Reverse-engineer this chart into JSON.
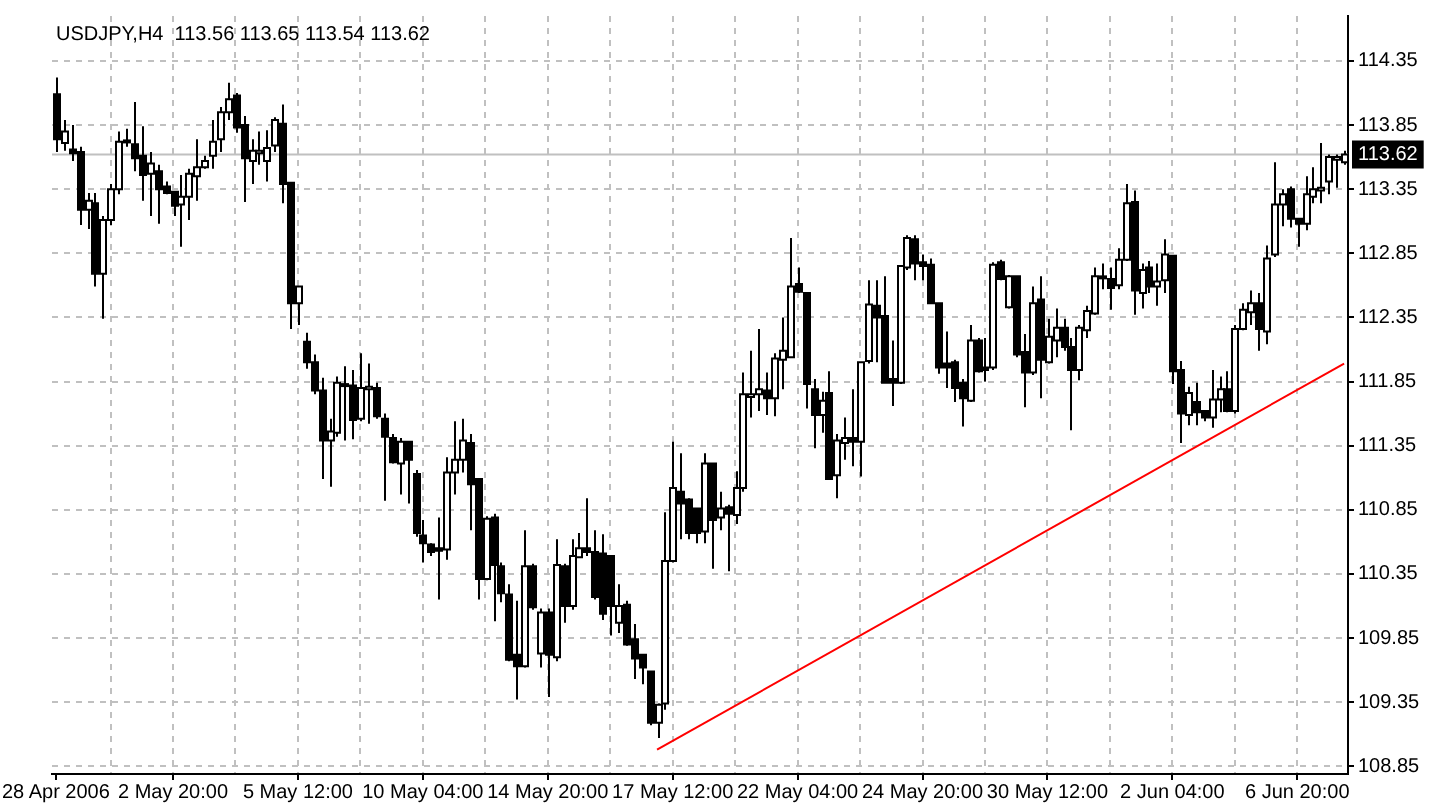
{
  "chart_data": {
    "type": "candlestick",
    "title": "USDJPY,H4  113.56 113.65 113.54 113.62",
    "color": "#000000",
    "categories": [
      "28 Apr 2006",
      null,
      null,
      null,
      null,
      null,
      null,
      null,
      null,
      null,
      null,
      null,
      null,
      null,
      null,
      "2 May 20:00",
      null,
      null,
      null,
      null,
      null,
      null,
      null,
      null,
      null,
      null,
      null,
      null,
      null,
      null,
      null,
      "5 May 12:00",
      null,
      null,
      null,
      null,
      null,
      null,
      null,
      null,
      null,
      null,
      null,
      null,
      null,
      null,
      null,
      "10 May 04:00",
      null,
      null,
      null,
      null,
      null,
      null,
      null,
      null,
      null,
      null,
      null,
      null,
      null,
      null,
      null,
      "14 May 20:00",
      null,
      null,
      null,
      null,
      null,
      null,
      null,
      null,
      null,
      null,
      null,
      null,
      null,
      null,
      null,
      "17 May 12:00",
      null,
      null,
      null,
      null,
      null,
      null,
      null,
      null,
      null,
      null,
      null,
      null,
      null,
      null,
      null,
      "22 May 04:00",
      null,
      null,
      null,
      null,
      null,
      null,
      null,
      null,
      null,
      null,
      null,
      null,
      null,
      null,
      null,
      "24 May 20:00",
      null,
      null,
      null,
      null,
      null,
      null,
      null,
      null,
      null,
      null,
      null,
      null,
      null,
      null,
      null,
      "30 May 12:00",
      null,
      null,
      null,
      null,
      null,
      null,
      null,
      null,
      null,
      null,
      null,
      null,
      null,
      null,
      null,
      "2 Jun 04:00",
      null,
      null,
      null,
      null,
      null,
      null,
      null,
      null,
      null,
      null,
      null,
      null,
      null,
      null,
      null,
      "6 Jun 20:00",
      null,
      null,
      null,
      null,
      null,
      null
    ],
    "ohlc": [
      [
        114.09,
        114.22,
        113.64,
        113.74
      ],
      [
        113.71,
        113.89,
        113.65,
        113.8
      ],
      [
        113.66,
        113.85,
        113.57,
        113.63
      ],
      [
        113.64,
        113.68,
        113.07,
        113.19
      ],
      [
        113.19,
        113.32,
        113.04,
        113.26
      ],
      [
        113.24,
        113.32,
        112.59,
        112.69
      ],
      [
        112.69,
        113.14,
        112.34,
        113.11
      ],
      [
        113.11,
        113.39,
        113.07,
        113.35
      ],
      [
        113.35,
        113.8,
        113.31,
        113.72
      ],
      [
        113.72,
        113.82,
        113.68,
        113.73
      ],
      [
        113.7,
        114.03,
        113.49,
        113.59
      ],
      [
        113.61,
        113.84,
        113.26,
        113.46
      ],
      [
        113.47,
        113.64,
        113.14,
        113.55
      ],
      [
        113.49,
        113.54,
        113.08,
        113.35
      ],
      [
        113.37,
        113.41,
        113.31,
        113.32
      ],
      [
        113.33,
        113.33,
        113.14,
        113.22
      ],
      [
        113.23,
        113.46,
        112.9,
        113.29
      ],
      [
        113.29,
        113.51,
        113.11,
        113.47
      ],
      [
        113.45,
        113.74,
        113.26,
        113.52
      ],
      [
        113.52,
        113.61,
        113.51,
        113.57
      ],
      [
        113.61,
        113.89,
        113.51,
        113.72
      ],
      [
        113.74,
        113.99,
        113.64,
        113.95
      ],
      [
        113.95,
        114.18,
        113.89,
        114.05
      ],
      [
        114.08,
        114.1,
        113.79,
        113.83
      ],
      [
        113.85,
        113.92,
        113.25,
        113.59
      ],
      [
        113.57,
        113.74,
        113.39,
        113.65
      ],
      [
        113.63,
        113.8,
        113.54,
        113.65
      ],
      [
        113.57,
        113.81,
        113.41,
        113.67
      ],
      [
        113.69,
        113.91,
        113.64,
        113.89
      ],
      [
        113.86,
        114.01,
        113.24,
        113.39
      ],
      [
        113.4,
        113.4,
        112.26,
        112.46
      ],
      [
        112.46,
        112.59,
        112.29,
        112.59
      ],
      [
        112.16,
        112.23,
        111.95,
        112.0
      ],
      [
        112.0,
        112.06,
        111.75,
        111.78
      ],
      [
        111.78,
        111.88,
        111.09,
        111.39
      ],
      [
        111.39,
        111.56,
        111.03,
        111.46
      ],
      [
        111.45,
        111.89,
        111.42,
        111.84
      ],
      [
        111.82,
        111.97,
        111.39,
        111.83
      ],
      [
        111.82,
        111.94,
        111.4,
        111.55
      ],
      [
        111.56,
        112.07,
        111.54,
        111.8
      ],
      [
        111.79,
        111.99,
        111.52,
        111.81
      ],
      [
        111.8,
        111.84,
        111.56,
        111.58
      ],
      [
        111.56,
        111.6,
        110.92,
        111.42
      ],
      [
        111.41,
        111.44,
        111.21,
        111.22
      ],
      [
        111.21,
        111.41,
        110.97,
        111.38
      ],
      [
        111.38,
        111.38,
        110.9,
        111.24
      ],
      [
        111.13,
        111.16,
        110.64,
        110.67
      ],
      [
        110.65,
        110.77,
        110.44,
        110.59
      ],
      [
        110.58,
        110.59,
        110.49,
        110.52
      ],
      [
        110.55,
        110.79,
        110.15,
        110.53
      ],
      [
        110.54,
        111.26,
        110.46,
        111.14
      ],
      [
        111.14,
        111.54,
        110.97,
        111.24
      ],
      [
        111.24,
        111.56,
        111.14,
        111.39
      ],
      [
        111.37,
        111.44,
        110.69,
        111.05
      ],
      [
        111.09,
        111.09,
        110.15,
        110.31
      ],
      [
        110.31,
        110.8,
        110.3,
        110.78
      ],
      [
        110.79,
        110.82,
        109.98,
        110.42
      ],
      [
        110.41,
        110.44,
        110.13,
        110.2
      ],
      [
        110.19,
        110.27,
        109.67,
        109.68
      ],
      [
        109.72,
        110.14,
        109.37,
        109.63
      ],
      [
        109.63,
        110.69,
        109.62,
        110.41
      ],
      [
        110.41,
        110.43,
        110.07,
        110.09
      ],
      [
        109.73,
        110.08,
        109.62,
        110.05
      ],
      [
        110.05,
        110.08,
        109.39,
        109.72
      ],
      [
        109.7,
        110.62,
        109.67,
        110.42
      ],
      [
        110.41,
        110.43,
        109.97,
        110.1
      ],
      [
        110.1,
        110.62,
        110.07,
        110.49
      ],
      [
        110.48,
        110.67,
        110.48,
        110.55
      ],
      [
        110.55,
        110.94,
        110.49,
        110.52
      ],
      [
        110.52,
        110.69,
        110.15,
        110.17
      ],
      [
        110.51,
        110.66,
        109.99,
        110.04
      ],
      [
        110.49,
        110.49,
        109.87,
        110.1
      ],
      [
        109.97,
        110.27,
        109.89,
        110.1
      ],
      [
        110.11,
        110.14,
        109.79,
        109.8
      ],
      [
        109.84,
        109.96,
        109.53,
        109.69
      ],
      [
        109.72,
        109.72,
        109.49,
        109.62
      ],
      [
        109.59,
        109.59,
        109.17,
        109.19
      ],
      [
        109.19,
        109.34,
        109.07,
        109.33
      ],
      [
        109.34,
        110.83,
        109.29,
        110.45
      ],
      [
        110.45,
        111.38,
        110.44,
        111.02
      ],
      [
        110.99,
        111.29,
        110.62,
        110.9
      ],
      [
        110.93,
        110.94,
        110.62,
        110.67
      ],
      [
        110.86,
        110.86,
        110.59,
        110.67
      ],
      [
        110.68,
        111.29,
        110.59,
        111.21
      ],
      [
        111.21,
        111.21,
        110.39,
        110.77
      ],
      [
        110.79,
        110.99,
        110.69,
        110.86
      ],
      [
        110.87,
        110.89,
        110.37,
        110.82
      ],
      [
        110.81,
        111.15,
        110.74,
        111.02
      ],
      [
        111.02,
        111.92,
        110.99,
        111.75
      ],
      [
        111.73,
        112.09,
        111.57,
        111.75
      ],
      [
        111.75,
        112.26,
        111.62,
        111.79
      ],
      [
        111.78,
        111.92,
        111.59,
        111.72
      ],
      [
        111.72,
        112.07,
        111.58,
        112.03
      ],
      [
        112.02,
        112.35,
        111.79,
        112.09
      ],
      [
        112.04,
        112.97,
        112.04,
        112.59
      ],
      [
        112.61,
        112.74,
        112.54,
        112.55
      ],
      [
        112.54,
        112.54,
        111.64,
        111.83
      ],
      [
        111.79,
        111.87,
        111.33,
        111.59
      ],
      [
        111.59,
        111.77,
        111.45,
        111.7
      ],
      [
        111.76,
        111.93,
        111.09,
        111.09
      ],
      [
        111.12,
        111.44,
        110.94,
        111.39
      ],
      [
        111.37,
        111.57,
        111.24,
        111.41
      ],
      [
        111.41,
        111.79,
        111.19,
        111.38
      ],
      [
        111.38,
        112.0,
        111.11,
        112.0
      ],
      [
        112.01,
        112.64,
        111.99,
        112.45
      ],
      [
        112.44,
        112.64,
        112.0,
        112.35
      ],
      [
        112.36,
        112.67,
        111.84,
        111.84
      ],
      [
        111.87,
        112.17,
        111.66,
        111.84
      ],
      [
        111.84,
        112.75,
        111.83,
        112.75
      ],
      [
        112.74,
        112.99,
        112.72,
        112.97
      ],
      [
        112.96,
        112.99,
        112.64,
        112.77
      ],
      [
        112.78,
        112.84,
        112.64,
        112.75
      ],
      [
        112.76,
        112.81,
        112.46,
        112.46
      ],
      [
        112.46,
        112.46,
        111.91,
        111.96
      ],
      [
        111.99,
        112.24,
        111.8,
        111.96
      ],
      [
        112.0,
        112.02,
        111.69,
        111.8
      ],
      [
        111.84,
        111.87,
        111.5,
        111.72
      ],
      [
        111.7,
        112.29,
        111.69,
        112.17
      ],
      [
        112.17,
        112.19,
        111.92,
        111.93
      ],
      [
        111.96,
        112.19,
        111.85,
        111.94
      ],
      [
        111.96,
        112.78,
        111.94,
        112.76
      ],
      [
        112.78,
        112.8,
        112.64,
        112.65
      ],
      [
        112.43,
        112.68,
        112.42,
        112.67
      ],
      [
        112.67,
        112.67,
        112.04,
        112.06
      ],
      [
        112.08,
        112.22,
        111.65,
        111.92
      ],
      [
        111.92,
        112.59,
        111.9,
        112.46
      ],
      [
        112.49,
        112.67,
        111.72,
        112.02
      ],
      [
        112.0,
        112.34,
        111.99,
        112.2
      ],
      [
        112.17,
        112.42,
        112.04,
        112.27
      ],
      [
        112.27,
        112.34,
        112.09,
        112.12
      ],
      [
        112.12,
        112.19,
        111.47,
        111.94
      ],
      [
        111.94,
        112.29,
        111.86,
        112.27
      ],
      [
        112.25,
        112.44,
        112.19,
        112.4
      ],
      [
        112.38,
        112.74,
        112.37,
        112.67
      ],
      [
        112.66,
        112.77,
        112.57,
        112.67
      ],
      [
        112.65,
        112.74,
        112.41,
        112.58
      ],
      [
        112.6,
        112.89,
        112.57,
        112.8
      ],
      [
        112.8,
        113.39,
        112.79,
        113.24
      ],
      [
        113.25,
        113.34,
        112.37,
        112.56
      ],
      [
        112.54,
        112.77,
        112.42,
        112.72
      ],
      [
        112.74,
        112.79,
        112.54,
        112.59
      ],
      [
        112.59,
        112.77,
        112.44,
        112.63
      ],
      [
        112.64,
        112.96,
        112.54,
        112.84
      ],
      [
        112.83,
        112.83,
        111.83,
        111.93
      ],
      [
        111.94,
        112.01,
        111.37,
        111.6
      ],
      [
        111.59,
        111.81,
        111.51,
        111.76
      ],
      [
        111.69,
        111.84,
        111.51,
        111.61
      ],
      [
        111.62,
        111.62,
        111.54,
        111.57
      ],
      [
        111.57,
        111.94,
        111.49,
        111.71
      ],
      [
        111.71,
        111.89,
        111.61,
        111.79
      ],
      [
        111.79,
        111.93,
        111.61,
        111.62
      ],
      [
        111.62,
        112.29,
        111.6,
        112.26
      ],
      [
        112.26,
        112.46,
        112.25,
        112.41
      ],
      [
        112.39,
        112.56,
        112.29,
        112.46
      ],
      [
        112.46,
        112.54,
        112.09,
        112.26
      ],
      [
        112.24,
        112.91,
        112.14,
        112.81
      ],
      [
        112.84,
        113.56,
        112.82,
        113.23
      ],
      [
        113.23,
        113.35,
        113.06,
        113.31
      ],
      [
        113.35,
        113.37,
        113.05,
        113.12
      ],
      [
        113.12,
        113.12,
        112.9,
        113.08
      ],
      [
        113.08,
        113.45,
        113.03,
        113.31
      ],
      [
        113.29,
        113.52,
        113.24,
        113.35
      ],
      [
        113.34,
        113.71,
        113.24,
        113.36
      ],
      [
        113.41,
        113.62,
        113.31,
        113.6
      ],
      [
        113.58,
        113.62,
        113.36,
        113.6
      ],
      [
        113.56,
        113.65,
        113.54,
        113.62
      ]
    ],
    "series": [
      {
        "type": "line",
        "values": [
          null,
          null,
          null,
          null,
          null,
          null,
          null,
          null,
          null,
          null,
          null,
          null,
          null,
          null,
          null,
          null,
          null,
          null,
          null,
          null,
          null,
          null,
          null,
          null,
          null,
          null,
          null,
          null,
          null,
          null,
          null,
          null,
          null,
          null,
          null,
          null,
          null,
          null,
          null,
          null,
          null,
          null,
          null,
          null,
          null,
          null,
          null,
          null,
          null,
          null,
          null,
          null,
          null,
          null,
          null,
          null,
          null,
          null,
          null,
          null,
          null,
          null,
          null,
          null,
          null,
          null,
          null,
          null,
          null,
          null,
          null,
          null,
          null,
          null,
          null,
          null,
          null,
          108.98,
          null,
          null,
          null,
          null,
          null,
          null,
          null,
          null,
          null,
          null,
          null,
          null,
          null,
          null,
          null,
          null,
          null,
          null,
          null,
          null,
          null,
          null,
          null,
          null,
          null,
          null,
          null,
          null,
          null,
          null,
          null,
          null,
          null,
          null,
          null,
          null,
          null,
          null,
          null,
          null,
          null,
          null,
          null,
          null,
          null,
          null,
          null,
          null,
          null,
          null,
          null,
          null,
          null,
          null,
          null,
          null,
          null,
          null,
          null,
          null,
          null,
          null,
          null,
          null,
          null,
          null,
          null,
          null,
          null,
          null,
          null,
          null,
          null,
          null,
          null,
          null,
          null,
          null,
          null,
          null,
          null,
          null,
          null,
          null,
          null,
          null,
          null,
          111.99
        ],
        "color": "#ff0000"
      }
    ],
    "ylim": [
      108.79,
      114.7
    ],
    "yticks": [
      108.85,
      109.35,
      109.85,
      110.35,
      110.85,
      111.35,
      111.85,
      112.35,
      112.85,
      113.35,
      113.85,
      114.35
    ],
    "grid": true,
    "ref_lines": [
      {
        "axis": "y",
        "value": 113.62,
        "label": "113.62",
        "color": "#c0c0c0"
      }
    ]
  }
}
